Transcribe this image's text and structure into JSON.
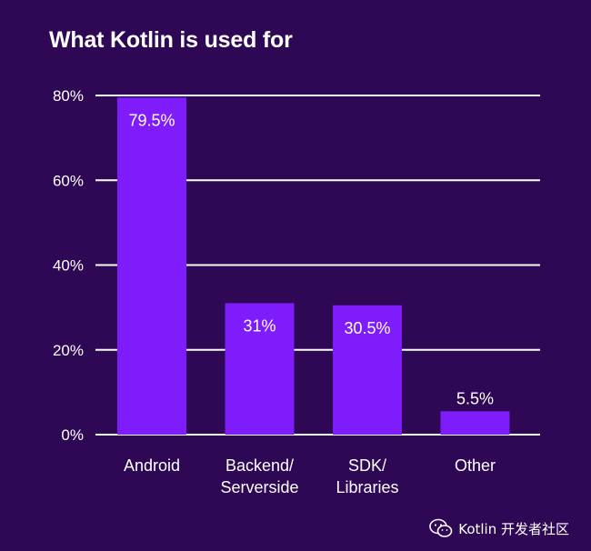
{
  "chart_data": {
    "type": "bar",
    "title": "What Kotlin is used for",
    "categories": [
      [
        "Android"
      ],
      [
        "Backend/",
        "Serverside"
      ],
      [
        "SDK/",
        "Libraries"
      ],
      [
        "Other"
      ]
    ],
    "values": [
      79.5,
      31,
      30.5,
      5.5
    ],
    "data_labels": [
      "79.5%",
      "31%",
      "30.5%",
      "5.5%"
    ],
    "ylim": [
      0,
      80
    ],
    "yticks": [
      0,
      20,
      40,
      60,
      80
    ],
    "ytick_labels": [
      "0%",
      "20%",
      "40%",
      "60%",
      "80%"
    ],
    "grid": true,
    "bar_color": "#7f1cfb",
    "grid_color": "#ffffff",
    "background": "#2e0855"
  },
  "watermark": {
    "text": "Kotlin 开发者社区",
    "icon": "wechat-icon"
  }
}
